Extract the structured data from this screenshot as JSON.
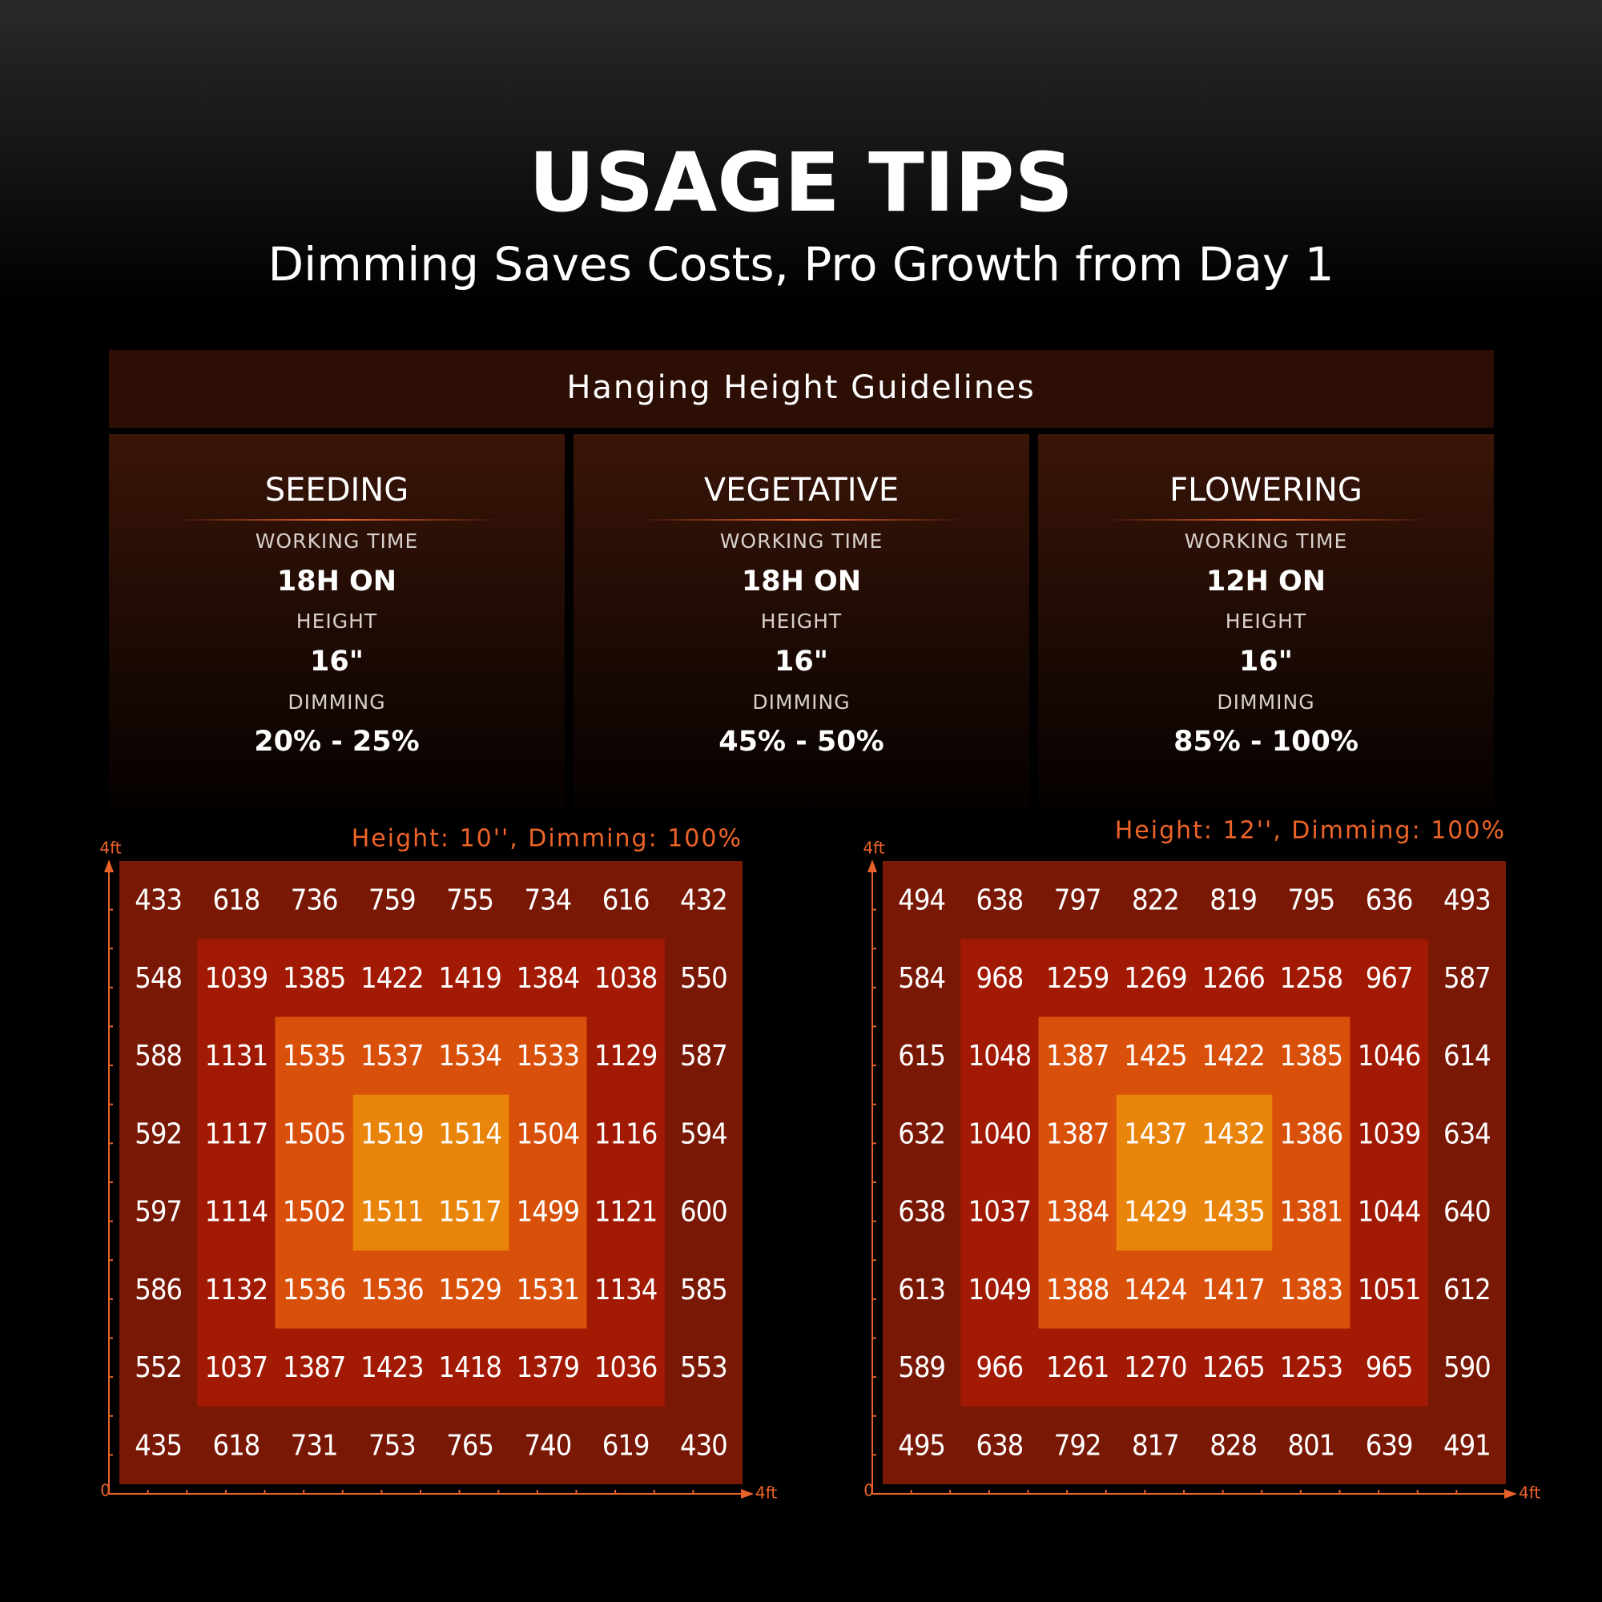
{
  "header": {
    "title": "USAGE TIPS",
    "subtitle": "Dimming Saves Costs, Pro Growth from Day 1"
  },
  "guidelines": {
    "title": "Hanging Height Guidelines",
    "stages": [
      {
        "name": "SEEDING",
        "time_label": "WORKING TIME",
        "time": "18H ON",
        "height_label": "HEIGHT",
        "height": "16\"",
        "dimming_label": "DIMMING",
        "dimming": "20% - 25%"
      },
      {
        "name": "VEGETATIVE",
        "time_label": "WORKING TIME",
        "time": "18H ON",
        "height_label": "HEIGHT",
        "height": "16\"",
        "dimming_label": "DIMMING",
        "dimming": "45% - 50%"
      },
      {
        "name": "FLOWERING",
        "time_label": "WORKING TIME",
        "time": "12H ON",
        "height_label": "HEIGHT",
        "height": "16\"",
        "dimming_label": "DIMMING",
        "dimming": "85% - 100%"
      }
    ]
  },
  "maps": [
    {
      "title": "Height: 10'', Dimming: 100%",
      "y_axis_label": "4ft",
      "origin_label": "0",
      "x_axis_label": "4ft",
      "rows": [
        [
          433,
          618,
          736,
          759,
          755,
          734,
          616,
          432
        ],
        [
          548,
          1039,
          1385,
          1422,
          1419,
          1384,
          1038,
          550
        ],
        [
          588,
          1131,
          1535,
          1537,
          1534,
          1533,
          1129,
          587
        ],
        [
          592,
          1117,
          1505,
          1519,
          1514,
          1504,
          1116,
          594
        ],
        [
          597,
          1114,
          1502,
          1511,
          1517,
          1499,
          1121,
          600
        ],
        [
          586,
          1132,
          1536,
          1536,
          1529,
          1531,
          1134,
          585
        ],
        [
          552,
          1037,
          1387,
          1423,
          1418,
          1379,
          1036,
          553
        ],
        [
          435,
          618,
          731,
          753,
          765,
          740,
          619,
          430
        ]
      ]
    },
    {
      "title": "Height: 12'', Dimming: 100%",
      "y_axis_label": "4ft",
      "origin_label": "0",
      "x_axis_label": "4ft",
      "rows": [
        [
          494,
          638,
          797,
          822,
          819,
          795,
          636,
          493
        ],
        [
          584,
          968,
          1259,
          1269,
          1266,
          1258,
          967,
          587
        ],
        [
          615,
          1048,
          1387,
          1425,
          1422,
          1385,
          1046,
          614
        ],
        [
          632,
          1040,
          1387,
          1437,
          1432,
          1386,
          1039,
          634
        ],
        [
          638,
          1037,
          1384,
          1429,
          1435,
          1381,
          1044,
          640
        ],
        [
          613,
          1049,
          1388,
          1424,
          1417,
          1383,
          1051,
          612
        ],
        [
          589,
          966,
          1261,
          1270,
          1265,
          1253,
          965,
          590
        ],
        [
          495,
          638,
          792,
          817,
          828,
          801,
          639,
          491
        ]
      ]
    }
  ]
}
